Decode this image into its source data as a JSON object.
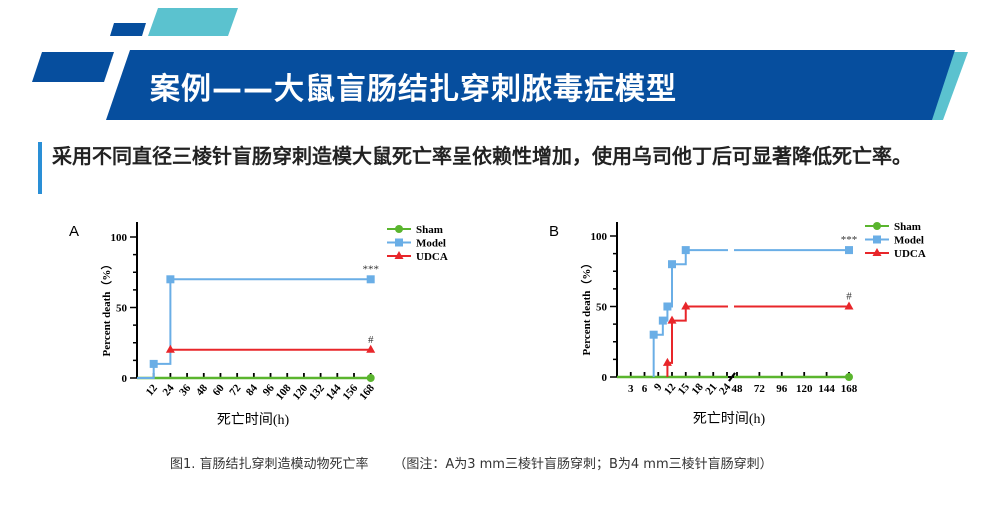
{
  "header": {
    "title": "案例——大鼠盲肠结扎穿刺脓毒症模型",
    "colors": {
      "band": "#064e9e",
      "accent": "#5bc2cf"
    }
  },
  "summary": "采用不同直径三棱针盲肠穿刺造模大鼠死亡率呈依赖性增加，使用乌司他丁后可显著降低死亡率。",
  "caption": "图1. 盲肠结扎穿刺造模动物死亡率      （图注：A为3 mm三棱针盲肠穿刺；B为4 mm三棱针盲肠穿刺）",
  "chart_data": [
    {
      "panel": "A",
      "type": "line",
      "step": true,
      "xlabel": "死亡时间(h)",
      "ylabel": "Percent death（%）",
      "ylim": [
        0,
        100
      ],
      "yticks": [
        0,
        50,
        100
      ],
      "xlim": [
        0,
        168
      ],
      "xticks": [
        12,
        24,
        36,
        48,
        60,
        72,
        84,
        96,
        108,
        120,
        132,
        144,
        156,
        168
      ],
      "legend": "top-right",
      "series": [
        {
          "name": "Sham",
          "color": "#5ab52e",
          "marker": "circle",
          "points": [
            [
              0,
              0
            ],
            [
              168,
              0
            ]
          ],
          "markers": [
            [
              168,
              0
            ]
          ]
        },
        {
          "name": "Model",
          "color": "#6aaee6",
          "marker": "square",
          "points": [
            [
              0,
              0
            ],
            [
              12,
              0
            ],
            [
              12,
              10
            ],
            [
              24,
              10
            ],
            [
              24,
              70
            ],
            [
              168,
              70
            ]
          ],
          "markers": [
            [
              12,
              10
            ],
            [
              24,
              70
            ],
            [
              168,
              70
            ]
          ],
          "annotation": "***"
        },
        {
          "name": "UDCA",
          "color": "#e8262a",
          "marker": "triangle",
          "points": [
            [
              24,
              20
            ],
            [
              168,
              20
            ]
          ],
          "markers": [
            [
              24,
              20
            ],
            [
              168,
              20
            ]
          ],
          "annotation": "#"
        }
      ]
    },
    {
      "panel": "B",
      "type": "line",
      "step": true,
      "xlabel": "死亡时间(h)",
      "ylabel": "Percent death（%）",
      "ylim": [
        0,
        100
      ],
      "yticks": [
        0,
        50,
        100
      ],
      "axis_break": [
        24,
        48
      ],
      "xticks": [
        3,
        6,
        9,
        12,
        15,
        18,
        21,
        24,
        48,
        72,
        96,
        120,
        144,
        168
      ],
      "legend": "top-right",
      "series": [
        {
          "name": "Sham",
          "color": "#5ab52e",
          "marker": "circle",
          "points": [
            [
              0,
              0
            ],
            [
              168,
              0
            ]
          ],
          "markers": [
            [
              168,
              0
            ]
          ]
        },
        {
          "name": "Model",
          "color": "#6aaee6",
          "marker": "square",
          "points": [
            [
              8,
              0
            ],
            [
              8,
              30
            ],
            [
              10,
              30
            ],
            [
              10,
              40
            ],
            [
              11,
              40
            ],
            [
              11,
              50
            ],
            [
              12,
              50
            ],
            [
              12,
              80
            ],
            [
              15,
              80
            ],
            [
              15,
              90
            ],
            [
              168,
              90
            ]
          ],
          "markers": [
            [
              8,
              30
            ],
            [
              10,
              40
            ],
            [
              11,
              50
            ],
            [
              12,
              80
            ],
            [
              15,
              90
            ],
            [
              168,
              90
            ]
          ],
          "annotation": "***"
        },
        {
          "name": "UDCA",
          "color": "#e8262a",
          "marker": "triangle",
          "points": [
            [
              11,
              0
            ],
            [
              11,
              10
            ],
            [
              12,
              10
            ],
            [
              12,
              40
            ],
            [
              15,
              40
            ],
            [
              15,
              50
            ],
            [
              168,
              50
            ]
          ],
          "markers": [
            [
              11,
              10
            ],
            [
              12,
              40
            ],
            [
              15,
              50
            ],
            [
              168,
              50
            ]
          ],
          "annotation": "#"
        }
      ]
    }
  ]
}
